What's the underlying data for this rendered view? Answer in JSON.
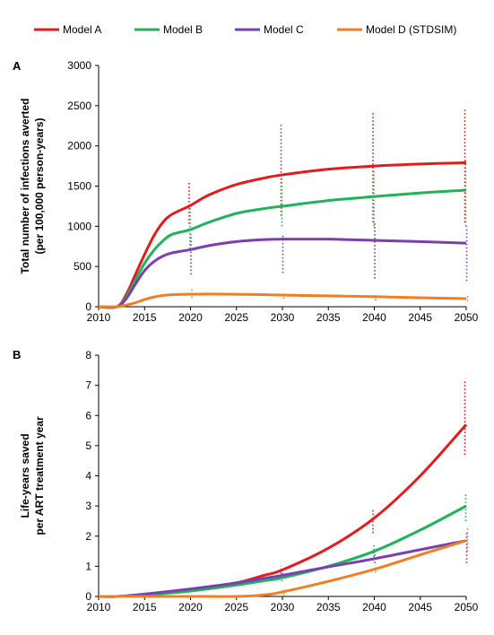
{
  "legend": [
    {
      "name": "Model A",
      "color": "#e41a1c"
    },
    {
      "name": "Model B",
      "color": "#1fb35a"
    },
    {
      "name": "Model C",
      "color": "#7a3fb0"
    },
    {
      "name": "Model D (STDSIM)",
      "color": "#f07f24"
    }
  ],
  "chart_data": [
    {
      "type": "line",
      "panel_label": "A",
      "ylabel_lines": [
        "Total number of infections averted",
        "(per 100,000 person-years)"
      ],
      "xlim": [
        2010,
        2050
      ],
      "ylim": [
        0,
        3000
      ],
      "xticks": [
        2010,
        2015,
        2020,
        2025,
        2030,
        2035,
        2040,
        2045,
        2050
      ],
      "yticks": [
        0,
        500,
        1000,
        1500,
        2000,
        2500,
        3000
      ],
      "x": [
        2010,
        2012,
        2013,
        2014,
        2015,
        2016,
        2017,
        2018,
        2020,
        2022,
        2025,
        2028,
        2030,
        2035,
        2040,
        2045,
        2050
      ],
      "series": [
        {
          "name": "Model A",
          "color": "#e41a1c",
          "values": [
            0,
            0,
            150,
            400,
            650,
            880,
            1050,
            1150,
            1260,
            1390,
            1520,
            1600,
            1640,
            1710,
            1750,
            1775,
            1790
          ],
          "ranges": [
            {
              "x": 2020,
              "low": 1030,
              "high": 1550
            },
            {
              "x": 2030,
              "low": 1130,
              "high": 2270
            },
            {
              "x": 2040,
              "low": 1050,
              "high": 2430
            },
            {
              "x": 2050,
              "low": 1050,
              "high": 2450
            }
          ]
        },
        {
          "name": "Model B",
          "color": "#1fb35a",
          "values": [
            0,
            0,
            120,
            330,
            540,
            700,
            820,
            900,
            960,
            1050,
            1160,
            1220,
            1250,
            1320,
            1370,
            1415,
            1450
          ],
          "ranges": [
            {
              "x": 2020,
              "low": 720,
              "high": 1230
            },
            {
              "x": 2030,
              "low": 1000,
              "high": 1620
            },
            {
              "x": 2040,
              "low": 1000,
              "high": 1700
            },
            {
              "x": 2050,
              "low": 1000,
              "high": 1820
            }
          ]
        },
        {
          "name": "Model C",
          "color": "#7a3fb0",
          "values": [
            0,
            0,
            100,
            280,
            450,
            560,
            630,
            670,
            710,
            760,
            810,
            835,
            840,
            840,
            825,
            810,
            790
          ],
          "ranges": [
            {
              "x": 2020,
              "low": 400,
              "high": 900
            },
            {
              "x": 2030,
              "low": 420,
              "high": 900
            },
            {
              "x": 2040,
              "low": 350,
              "high": 1050
            },
            {
              "x": 2050,
              "low": 320,
              "high": 1000
            }
          ]
        },
        {
          "name": "Model D (STDSIM)",
          "color": "#f07f24",
          "values": [
            0,
            0,
            20,
            50,
            90,
            120,
            140,
            150,
            155,
            158,
            155,
            150,
            145,
            135,
            125,
            112,
            100
          ],
          "ranges": [
            {
              "x": 2020,
              "low": 110,
              "high": 240
            },
            {
              "x": 2030,
              "low": 100,
              "high": 180
            },
            {
              "x": 2040,
              "low": 80,
              "high": 170
            },
            {
              "x": 2050,
              "low": 70,
              "high": 140
            }
          ]
        }
      ]
    },
    {
      "type": "line",
      "panel_label": "B",
      "ylabel_lines": [
        "Life-years saved",
        "per ART treatment year"
      ],
      "xlim": [
        2010,
        2050
      ],
      "ylim": [
        0,
        8
      ],
      "xticks": [
        2010,
        2015,
        2020,
        2025,
        2030,
        2035,
        2040,
        2045,
        2050
      ],
      "yticks": [
        0,
        1,
        2,
        3,
        4,
        5,
        6,
        7,
        8
      ],
      "x": [
        2010,
        2012,
        2015,
        2020,
        2025,
        2028,
        2030,
        2035,
        2040,
        2045,
        2050
      ],
      "series": [
        {
          "name": "Model A",
          "color": "#e41a1c",
          "values": [
            0,
            0,
            0.05,
            0.2,
            0.45,
            0.7,
            0.88,
            1.6,
            2.6,
            4.0,
            5.7
          ],
          "ranges": [
            {
              "x": 2030,
              "low": 0.75,
              "high": 1.0
            },
            {
              "x": 2040,
              "low": 2.1,
              "high": 2.9
            },
            {
              "x": 2050,
              "low": 4.7,
              "high": 7.2
            }
          ]
        },
        {
          "name": "Model B",
          "color": "#1fb35a",
          "values": [
            0,
            0,
            0.05,
            0.18,
            0.38,
            0.52,
            0.62,
            1.0,
            1.5,
            2.2,
            3.0
          ],
          "ranges": [
            {
              "x": 2030,
              "low": 0.5,
              "high": 0.75
            },
            {
              "x": 2040,
              "low": 1.3,
              "high": 1.7
            },
            {
              "x": 2050,
              "low": 2.5,
              "high": 3.45
            }
          ]
        },
        {
          "name": "Model C",
          "color": "#7a3fb0",
          "values": [
            0,
            0,
            0.08,
            0.25,
            0.45,
            0.6,
            0.7,
            0.98,
            1.25,
            1.55,
            1.85
          ],
          "ranges": [
            {
              "x": 2030,
              "low": 0.6,
              "high": 0.8
            },
            {
              "x": 2040,
              "low": 1.1,
              "high": 1.4
            },
            {
              "x": 2050,
              "low": 1.1,
              "high": 2.1
            }
          ]
        },
        {
          "name": "Model D (STDSIM)",
          "color": "#f07f24",
          "values": [
            0,
            0,
            0,
            0,
            0,
            0.05,
            0.15,
            0.5,
            0.9,
            1.38,
            1.85
          ],
          "ranges": [
            {
              "x": 2030,
              "low": 0.05,
              "high": 0.25
            },
            {
              "x": 2040,
              "low": 0.8,
              "high": 1.05
            },
            {
              "x": 2050,
              "low": 1.5,
              "high": 2.3
            }
          ]
        }
      ]
    }
  ]
}
